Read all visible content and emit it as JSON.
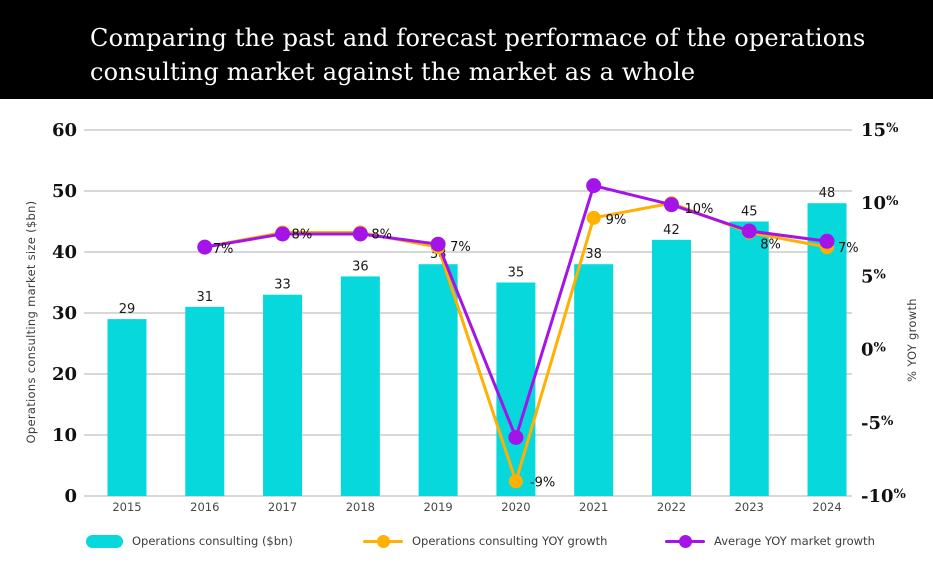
{
  "header": {
    "title_lines": [
      "Comparing the past and forecast performace of the operations",
      "consulting market against the market as a whole"
    ]
  },
  "chart_data": {
    "type": "combo bar-line",
    "categories": [
      "2015",
      "2016",
      "2017",
      "2018",
      "2019",
      "2020",
      "2021",
      "2022",
      "2023",
      "2024"
    ],
    "bar_series": {
      "name": "Operations consulting ($bn)",
      "axis": "left",
      "color": "#06d8dc",
      "values": [
        29,
        31,
        33,
        36,
        38,
        35,
        38,
        42,
        45,
        48
      ]
    },
    "line_series": [
      {
        "name": "Operations consulting YOY growth",
        "axis": "right",
        "color": "#ffb000",
        "start_category": "2016",
        "values": [
          7,
          8,
          8,
          7,
          -9,
          9,
          10,
          8,
          7
        ],
        "point_labels": [
          "7%",
          "8%",
          "8%",
          "7%",
          "-9%",
          "9%",
          "10%",
          "8%",
          "7%"
        ]
      },
      {
        "name": "Average YOY market growth",
        "axis": "right",
        "color": "#a414e8",
        "start_category": "2016",
        "values": [
          7,
          7.9,
          7.9,
          7.2,
          -6,
          11.2,
          9.9,
          8.1,
          7.4
        ],
        "point_labels": []
      }
    ],
    "left_axis": {
      "label": "Operations consulting market size ($bn)",
      "ticks": [
        "0",
        "10",
        "20",
        "30",
        "40",
        "50",
        "60"
      ],
      "tick_values": [
        0,
        10,
        20,
        30,
        40,
        50,
        60
      ],
      "range": [
        0,
        60
      ]
    },
    "right_axis": {
      "label": "% YOY growth",
      "ticks": [
        "-10%",
        "-5%",
        "0%",
        "5%",
        "10%",
        "15%"
      ],
      "tick_values": [
        -10,
        -5,
        0,
        5,
        10,
        15
      ],
      "range": [
        -10,
        15
      ]
    },
    "grid": "horizontal",
    "legend_position": "bottom"
  },
  "colors": {
    "header_bg": "#000000",
    "header_text": "#ffffff",
    "page_bg": "#ffffff",
    "gridline": "#b0b0b0",
    "axis_line": "#b0b0b0",
    "tick_text": "#111111",
    "bar_label": "#1c1c1c",
    "point_label": "#111111",
    "category_label": "#474747",
    "axis_title": "#3d3d3d",
    "legend_text": "#3d3d3d"
  }
}
